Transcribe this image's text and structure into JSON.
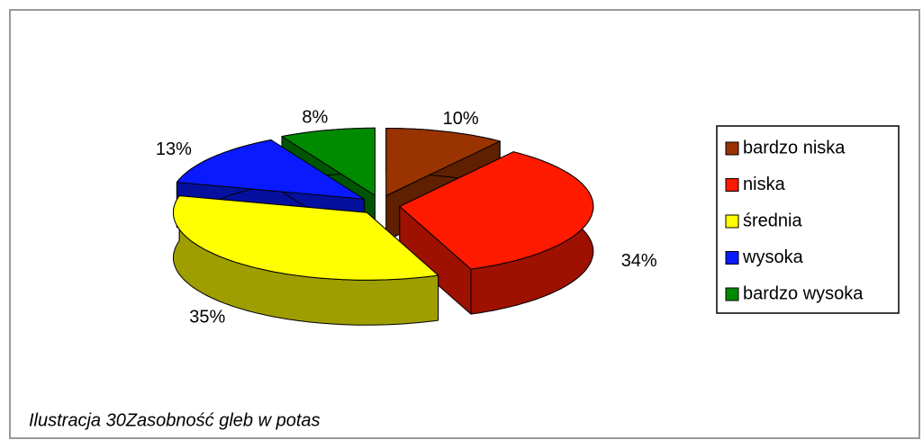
{
  "chart_data": {
    "type": "pie3d",
    "caption": "Ilustracja 30Zasobność gleb w potas",
    "categories": [
      "bardzo niska",
      "niska",
      "średnia",
      "wysoka",
      "bardzo wysoka"
    ],
    "values": [
      10,
      34,
      35,
      13,
      8
    ],
    "value_labels": [
      "10%",
      "34%",
      "35%",
      "13%",
      "8%"
    ],
    "colors": [
      "#993300",
      "#ff1a00",
      "#ffff00",
      "#0a1aff",
      "#008a00"
    ],
    "legend": "right"
  }
}
